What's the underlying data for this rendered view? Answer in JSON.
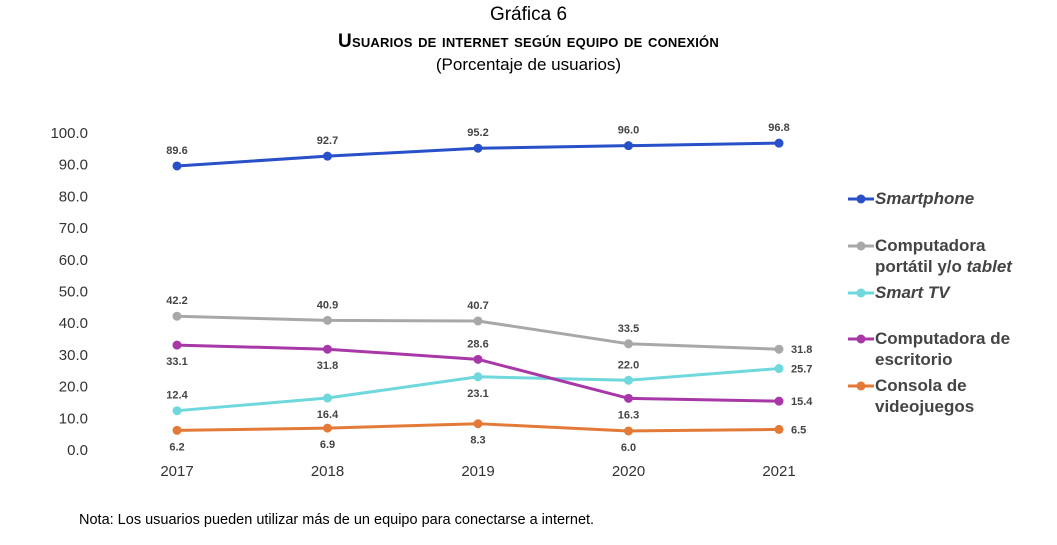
{
  "header": {
    "label": "Gráfica 6",
    "title": "Usuarios de internet según equipo de conexión",
    "subtitle": "(Porcentaje de usuarios)"
  },
  "note": "Nota: Los usuarios pueden utilizar más de un equipo para conectarse a internet.",
  "chart_data": {
    "type": "line",
    "title": "Usuarios de internet según equipo de conexión",
    "subtitle": "(Porcentaje de usuarios)",
    "x": [
      "2017",
      "2018",
      "2019",
      "2020",
      "2021"
    ],
    "ylim": [
      0,
      100
    ],
    "yticks": [
      "0.0",
      "10.0",
      "20.0",
      "30.0",
      "40.0",
      "50.0",
      "60.0",
      "70.0",
      "80.0",
      "90.0",
      "100.0"
    ],
    "grid": false,
    "legend_position": "right",
    "series": [
      {
        "name_parts": [
          {
            "t": "Smartphone",
            "i": true
          }
        ],
        "name": "Smartphone",
        "color": "#2850c8",
        "values": [
          89.6,
          92.7,
          95.2,
          96.0,
          96.8
        ],
        "labels": [
          "89.6",
          "92.7",
          "95.2",
          "96.0",
          "96.8"
        ],
        "label_pos": [
          "above",
          "above",
          "above",
          "above",
          "above"
        ]
      },
      {
        "name": "Computadora portátil y/o tablet",
        "name_lines": [
          [
            {
              "t": "Computadora",
              "i": false
            }
          ],
          [
            {
              "t": "portátil y/o ",
              "i": false
            },
            {
              "t": "tablet",
              "i": true
            }
          ]
        ],
        "color": "#a8a8a8",
        "values": [
          42.2,
          40.9,
          40.7,
          33.5,
          31.8
        ],
        "labels": [
          "42.2",
          "40.9",
          "40.7",
          "33.5",
          "31.8"
        ],
        "label_pos": [
          "above",
          "above",
          "above",
          "above",
          "right"
        ]
      },
      {
        "name": "Smart TV",
        "name_lines": [
          [
            {
              "t": "Smart TV",
              "i": true
            }
          ]
        ],
        "color": "#6ed8dc",
        "values": [
          12.4,
          16.4,
          23.1,
          22.0,
          25.7
        ],
        "labels": [
          "12.4",
          "16.4",
          "23.1",
          "22.0",
          "25.7"
        ],
        "label_pos": [
          "above",
          "below",
          "below",
          "above",
          "right"
        ]
      },
      {
        "name": "Computadora de escritorio",
        "name_lines": [
          [
            {
              "t": "Computadora de",
              "i": false
            }
          ],
          [
            {
              "t": "escritorio",
              "i": false
            }
          ]
        ],
        "color": "#a838a8",
        "values": [
          33.1,
          31.8,
          28.6,
          16.3,
          15.4
        ],
        "labels": [
          "33.1",
          "31.8",
          "28.6",
          "16.3",
          "15.4"
        ],
        "label_pos": [
          "below",
          "below",
          "above",
          "below",
          "right"
        ]
      },
      {
        "name": "Consola de videojuegos",
        "name_lines": [
          [
            {
              "t": "Consola de",
              "i": false
            }
          ],
          [
            {
              "t": "videojuegos",
              "i": false
            }
          ]
        ],
        "color": "#e47a38",
        "values": [
          6.2,
          6.9,
          8.3,
          6.0,
          6.5
        ],
        "labels": [
          "6.2",
          "6.9",
          "8.3",
          "6.0",
          "6.5"
        ],
        "label_pos": [
          "below",
          "below",
          "below",
          "below",
          "right"
        ]
      }
    ]
  }
}
